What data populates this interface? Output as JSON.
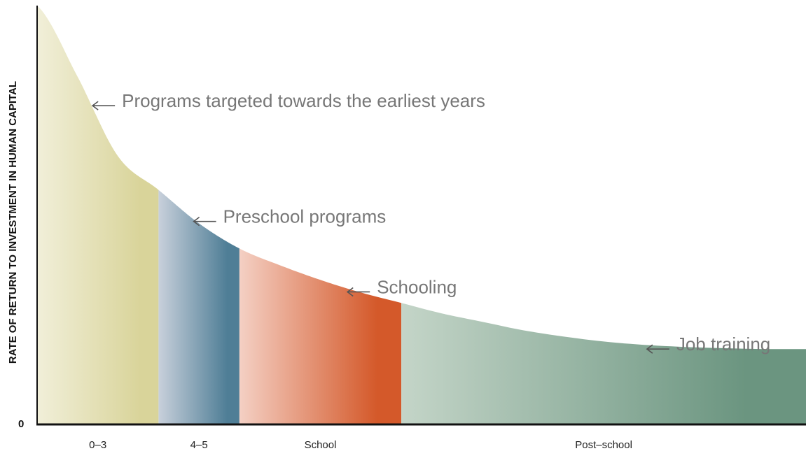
{
  "chart_data": {
    "type": "area",
    "title": "",
    "xlabel": "",
    "ylabel": "RATE OF RETURN TO INVESTMENT IN HUMAN CAPITAL",
    "y_zero_label": "0",
    "grid": false,
    "legend": "none",
    "segments": [
      {
        "label": "0–3",
        "age_range": [
          0,
          3
        ],
        "color_start": "#f1efd9",
        "color_end": "#d9d49a"
      },
      {
        "label": "4–5",
        "age_range": [
          3,
          5
        ],
        "color_start": "#c8d0db",
        "color_end": "#4f7e96"
      },
      {
        "label": "School",
        "age_range": [
          5,
          9
        ],
        "color_start": "#f4d0c4",
        "color_end": "#d4592a"
      },
      {
        "label": "Post–school",
        "age_range": [
          9,
          19
        ],
        "color_start": "#c4d5c8",
        "color_end": "#6b9580"
      }
    ],
    "curve": {
      "x": [
        0,
        1,
        2,
        3,
        4,
        5,
        6,
        7,
        8,
        9,
        10,
        11,
        12,
        13,
        14,
        15,
        16,
        17,
        18,
        19
      ],
      "y": [
        100,
        83,
        64,
        56,
        48,
        42,
        38,
        34.5,
        31.5,
        29,
        26.5,
        24.5,
        22.5,
        21,
        19.8,
        19,
        18.5,
        18.2,
        18,
        18
      ],
      "ylim": [
        0,
        100
      ]
    },
    "annotations": [
      {
        "text": "Programs targeted towards the earliest years",
        "x": 1.3,
        "y": 96
      },
      {
        "text": "Preschool programs",
        "x": 3.8,
        "y": 64
      },
      {
        "text": "Schooling",
        "x": 7.6,
        "y": 39.5
      },
      {
        "text": "Job training",
        "x": 15.0,
        "y": 21
      }
    ]
  }
}
